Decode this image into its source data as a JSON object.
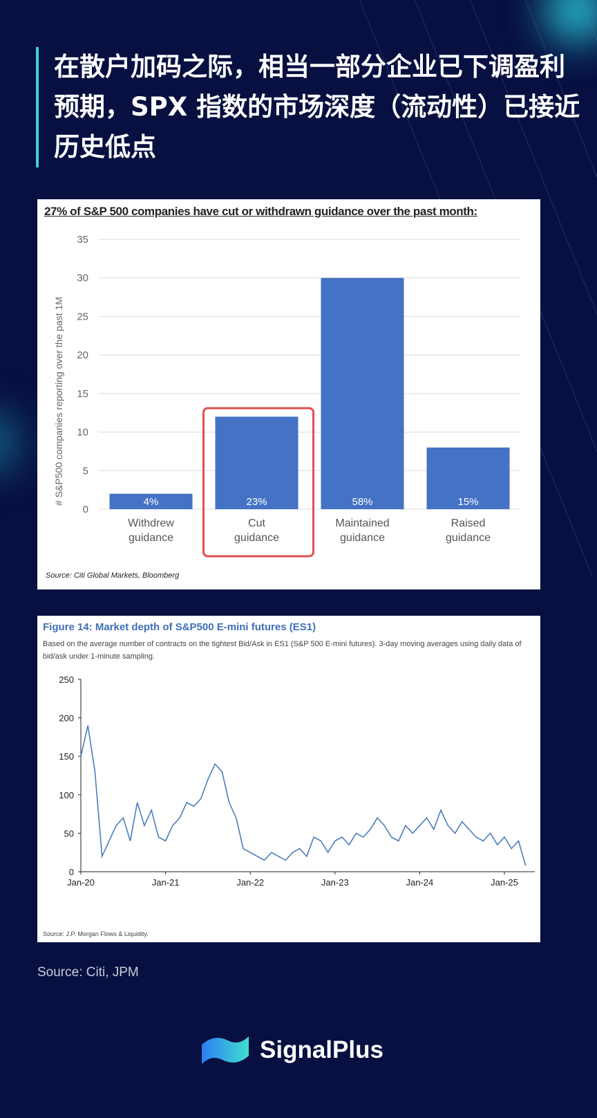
{
  "title": "在散户加码之际，相当一部分企业已下调盈利预期，SPX 指数的市场深度（流动性）已接近历史低点",
  "source_main": "Source: Citi, JPM",
  "brand": "SignalPlus",
  "colors": {
    "bar": "#4472c4",
    "highlight": "#e05050",
    "line": "#4a7ebb",
    "background": "#071040",
    "accent": "#3fd6d6"
  },
  "chart_data": [
    {
      "type": "bar",
      "title": "27% of S&P 500 companies have cut or withdrawn guidance over the past month:",
      "ylabel": "# S&P500 companies reporting over the past 1M",
      "xlabel": "",
      "ylim": [
        0,
        35
      ],
      "yticks": [
        0,
        5,
        10,
        15,
        20,
        25,
        30,
        35
      ],
      "grid": true,
      "categories": [
        "Withdrew guidance",
        "Cut guidance",
        "Maintained guidance",
        "Raised guidance"
      ],
      "category_lines": [
        [
          "Withdrew",
          "guidance"
        ],
        [
          "Cut",
          "guidance"
        ],
        [
          "Maintained",
          "guidance"
        ],
        [
          "Raised",
          "guidance"
        ]
      ],
      "values": [
        2,
        12,
        30,
        8
      ],
      "labels": [
        "4%",
        "23%",
        "58%",
        "15%"
      ],
      "highlighted": "Cut guidance",
      "source": "Source: Citi Global Markets, Bloomberg"
    },
    {
      "type": "line",
      "title": "Figure 14: Market depth of S&P500 E-mini futures (ES1)",
      "subtitle": "Based on the average number of contracts on the tightest Bid/Ask in ES1 (S&P 500 E-mini futures). 3-day moving averages using daily data of bid/ask under 1-minute sampling.",
      "ylim": [
        0,
        250
      ],
      "yticks": [
        0,
        50,
        100,
        150,
        200,
        250
      ],
      "xticks": [
        "Jan-20",
        "Jan-21",
        "Jan-22",
        "Jan-23",
        "Jan-24",
        "Jan-25"
      ],
      "x_start_year": 2020,
      "x_step_months": 1,
      "values": [
        150,
        190,
        130,
        20,
        40,
        60,
        70,
        40,
        90,
        60,
        80,
        45,
        40,
        60,
        70,
        90,
        85,
        95,
        120,
        140,
        130,
        90,
        70,
        30,
        25,
        20,
        15,
        25,
        20,
        15,
        25,
        30,
        20,
        45,
        40,
        25,
        40,
        45,
        35,
        50,
        45,
        55,
        70,
        60,
        45,
        40,
        60,
        50,
        60,
        70,
        55,
        80,
        60,
        50,
        65,
        55,
        45,
        40,
        50,
        35,
        45,
        30,
        40,
        8
      ],
      "source": "Source: J.P. Morgan Flows & Liquidity."
    }
  ]
}
